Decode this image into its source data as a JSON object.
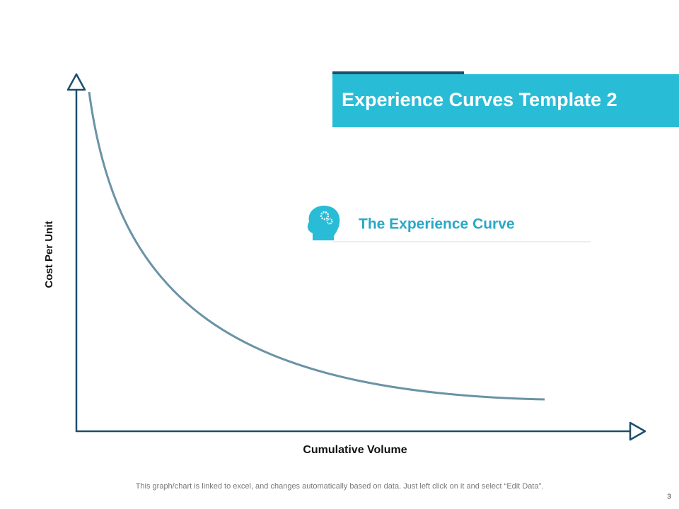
{
  "title": "Experience Curves Template 2",
  "curve_label": "The Experience Curve",
  "y_axis_label": "Cost Per Unit",
  "x_axis_label": "Cumulative Volume",
  "footnote": "This graph/chart is linked to excel, and changes automatically based on data. Just left click on it and select “Edit Data”.",
  "page_number": "3"
}
